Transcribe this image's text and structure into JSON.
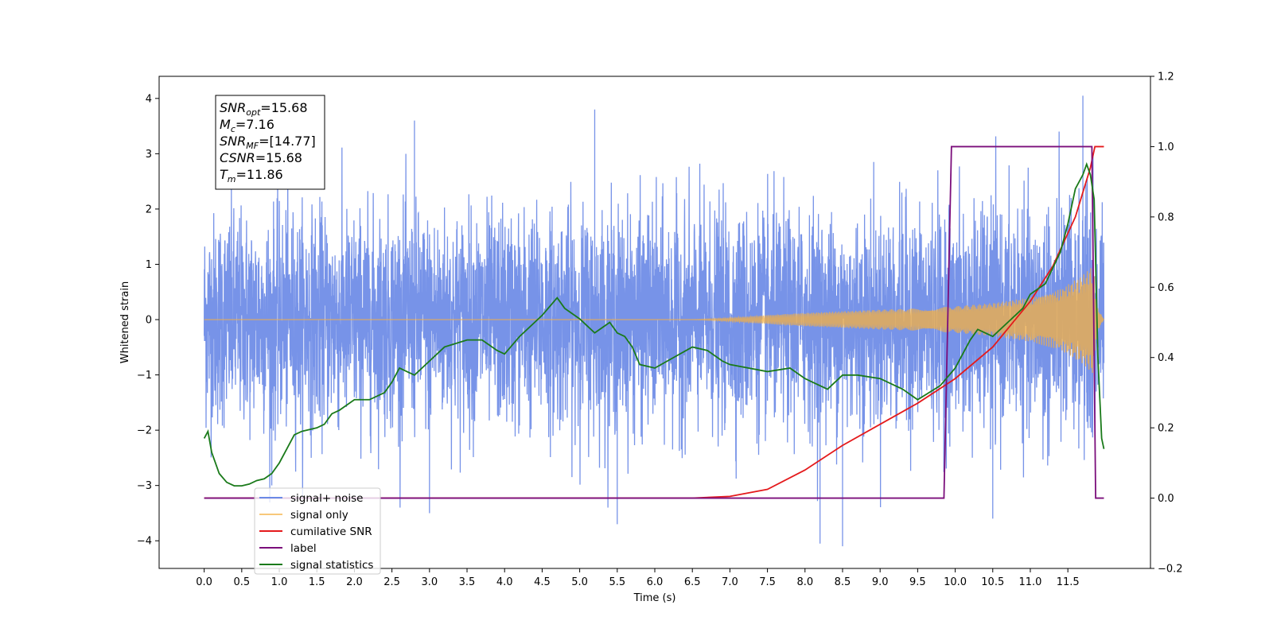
{
  "chart_data": {
    "type": "line",
    "xlabel": "Time (s)",
    "ylabel_left": "Whitened strain",
    "xlim": [
      -0.6,
      12.6
    ],
    "ylim_left": [
      -4.5,
      4.4
    ],
    "ylim_right": [
      -0.2,
      1.2
    ],
    "x_ticks": [
      0.0,
      0.5,
      1.0,
      1.5,
      2.0,
      2.5,
      3.0,
      3.5,
      4.0,
      4.5,
      5.0,
      5.5,
      6.0,
      6.5,
      7.0,
      7.5,
      8.0,
      8.5,
      9.0,
      9.5,
      10.0,
      10.5,
      11.0,
      11.5
    ],
    "x_tick_labels": [
      "0.0",
      "0.5",
      "1.0",
      "1.5",
      "2.0",
      "2.5",
      "3.0",
      "3.5",
      "4.0",
      "4.5",
      "5.0",
      "5.5",
      "6.0",
      "6.5",
      "7.0",
      "7.5",
      "8.0",
      "8.5",
      "9.0",
      "9.5",
      "10.0",
      "10.5",
      "11.0",
      "11.5"
    ],
    "y_left_ticks": [
      -4,
      -3,
      -2,
      -1,
      0,
      1,
      2,
      3,
      4
    ],
    "y_left_tick_labels": [
      "−4",
      "−3",
      "−2",
      "−1",
      "0",
      "1",
      "2",
      "3",
      "4"
    ],
    "y_right_ticks": [
      -0.2,
      0.0,
      0.2,
      0.4,
      0.6,
      0.8,
      1.0,
      1.2
    ],
    "y_right_tick_labels": [
      "−0.2",
      "0.0",
      "0.2",
      "0.4",
      "0.6",
      "0.8",
      "1.0",
      "1.2"
    ],
    "grid": false,
    "legend_position": "lower-left",
    "annotation": {
      "lines": [
        {
          "base": "SNR",
          "sub": "opt",
          "rest": "=15.68"
        },
        {
          "base": "M",
          "sub": "c",
          "rest": "=7.16"
        },
        {
          "base": "SNR",
          "sub": "MF",
          "rest": "=[14.77]"
        },
        {
          "base": "CSNR",
          "sub": "",
          "rest": "=15.68"
        },
        {
          "base": "T",
          "sub": "m",
          "rest": "=11.86"
        }
      ]
    },
    "series": [
      {
        "name": "signal+ noise",
        "color": "#6b8ae6",
        "axis": "left",
        "x_range": [
          0.0,
          11.98
        ],
        "noise_sigma": 1.0,
        "spikes": [
          [
            2.8,
            3.6
          ],
          [
            5.2,
            3.8
          ],
          [
            11.7,
            4.05
          ],
          [
            3.0,
            -3.5
          ],
          [
            5.5,
            -3.7
          ],
          [
            8.2,
            -4.05
          ],
          [
            8.5,
            -4.1
          ],
          [
            10.5,
            -3.6
          ],
          [
            0.9,
            -3.0
          ]
        ]
      },
      {
        "name": "signal only",
        "color": "#f5b041",
        "axis": "left",
        "x_range": [
          0.0,
          11.98
        ],
        "envelope": [
          [
            0.0,
            0.0
          ],
          [
            6.5,
            0.0
          ],
          [
            7.0,
            0.03
          ],
          [
            7.5,
            0.08
          ],
          [
            8.0,
            0.12
          ],
          [
            8.5,
            0.15
          ],
          [
            9.0,
            0.18
          ],
          [
            9.5,
            0.2
          ],
          [
            10.0,
            0.24
          ],
          [
            10.5,
            0.3
          ],
          [
            11.0,
            0.4
          ],
          [
            11.4,
            0.55
          ],
          [
            11.7,
            0.8
          ],
          [
            11.84,
            1.0
          ],
          [
            11.88,
            0.25
          ],
          [
            11.98,
            0.0
          ]
        ]
      },
      {
        "name": "cumilative SNR",
        "color": "#e41a1c",
        "axis": "right",
        "x": [
          0.0,
          6.5,
          7.0,
          7.5,
          8.0,
          8.5,
          9.0,
          9.5,
          10.0,
          10.5,
          11.0,
          11.3,
          11.6,
          11.8,
          11.86,
          11.98
        ],
        "y": [
          0.0,
          0.0,
          0.005,
          0.025,
          0.08,
          0.15,
          0.21,
          0.27,
          0.34,
          0.43,
          0.56,
          0.66,
          0.8,
          0.94,
          1.0,
          1.0
        ]
      },
      {
        "name": "label",
        "color": "#7b0e7b",
        "axis": "right",
        "x": [
          0.0,
          9.85,
          9.95,
          11.82,
          11.87,
          11.98
        ],
        "y": [
          0.0,
          0.0,
          1.0,
          1.0,
          0.0,
          0.0
        ]
      },
      {
        "name": "signal statistics",
        "color": "#1a7a1a",
        "axis": "right",
        "x": [
          0.0,
          0.05,
          0.1,
          0.15,
          0.2,
          0.3,
          0.4,
          0.5,
          0.6,
          0.7,
          0.8,
          0.9,
          1.0,
          1.1,
          1.2,
          1.3,
          1.5,
          1.6,
          1.7,
          1.8,
          2.0,
          2.2,
          2.4,
          2.5,
          2.6,
          2.7,
          2.8,
          3.0,
          3.2,
          3.5,
          3.7,
          3.9,
          4.0,
          4.2,
          4.4,
          4.5,
          4.7,
          4.8,
          5.0,
          5.2,
          5.4,
          5.5,
          5.6,
          5.7,
          5.8,
          6.0,
          6.5,
          6.7,
          6.9,
          7.0,
          7.5,
          7.8,
          8.0,
          8.3,
          8.5,
          8.7,
          9.0,
          9.3,
          9.5,
          9.8,
          10.0,
          10.2,
          10.3,
          10.5,
          10.7,
          10.9,
          11.0,
          11.2,
          11.4,
          11.5,
          11.6,
          11.7,
          11.75,
          11.8,
          11.85,
          11.9,
          11.95,
          11.98
        ],
        "y": [
          0.17,
          0.19,
          0.13,
          0.1,
          0.07,
          0.045,
          0.035,
          0.035,
          0.04,
          0.05,
          0.055,
          0.07,
          0.1,
          0.14,
          0.18,
          0.19,
          0.2,
          0.21,
          0.24,
          0.25,
          0.28,
          0.28,
          0.3,
          0.33,
          0.37,
          0.36,
          0.35,
          0.39,
          0.43,
          0.45,
          0.45,
          0.42,
          0.41,
          0.46,
          0.5,
          0.52,
          0.57,
          0.54,
          0.51,
          0.47,
          0.5,
          0.47,
          0.46,
          0.43,
          0.38,
          0.37,
          0.43,
          0.42,
          0.39,
          0.38,
          0.36,
          0.37,
          0.34,
          0.31,
          0.35,
          0.35,
          0.34,
          0.31,
          0.28,
          0.32,
          0.37,
          0.45,
          0.48,
          0.46,
          0.5,
          0.54,
          0.58,
          0.61,
          0.7,
          0.78,
          0.88,
          0.92,
          0.95,
          0.92,
          0.85,
          0.4,
          0.17,
          0.14
        ]
      }
    ]
  }
}
